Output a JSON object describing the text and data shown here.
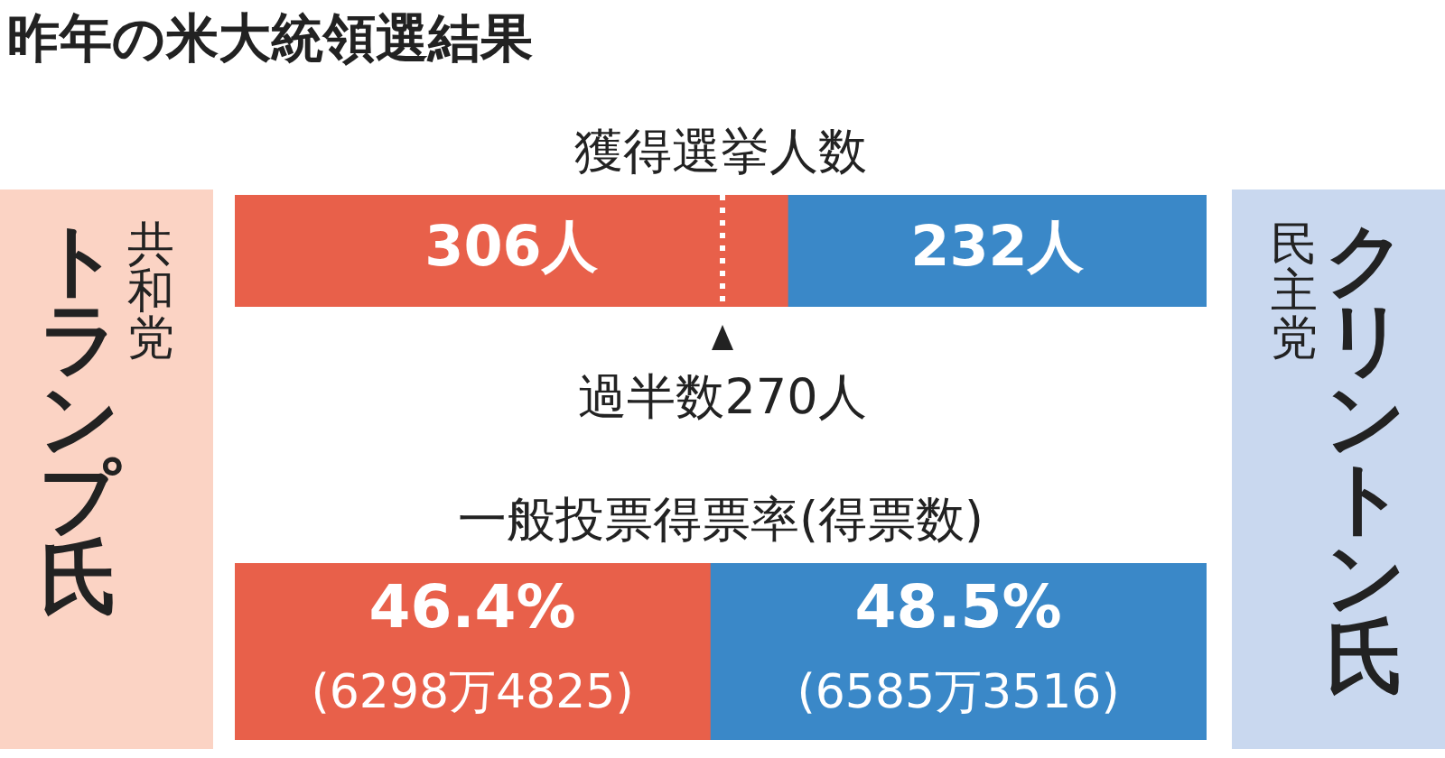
{
  "chart_data": [
    {
      "type": "bar",
      "orientation": "horizontal",
      "stacked": true,
      "title": "昨年の米大統領選結果",
      "subtitle": "獲得選挙人数",
      "categories": [
        null
      ],
      "series": [
        {
          "name": "トランプ氏",
          "color": "#e8604a",
          "values": [
            306
          ],
          "value_labels": [
            "306人"
          ]
        },
        {
          "name": "クリントン氏",
          "color": "#3a88c8",
          "values": [
            232
          ],
          "value_labels": [
            "232人"
          ]
        }
      ],
      "annotations": [
        "共和党",
        "民主党"
      ],
      "ref_lines": [
        {
          "axis": "x",
          "value": 270,
          "label": "過半数270人",
          "color": "#ffffff",
          "line_style": "dotted"
        }
      ],
      "tick_labels": false,
      "legend": false
    },
    {
      "type": "bar",
      "orientation": "horizontal",
      "stacked": true,
      "title": "一般投票得票率(得票数)",
      "categories": [
        null
      ],
      "series": [
        {
          "color": "#e8604a",
          "values": [
            46.4
          ],
          "value_labels": [
            "46.4%\n(6298万4825)"
          ]
        },
        {
          "color": "#3a88c8",
          "values": [
            48.5
          ],
          "value_labels": [
            "48.5%\n(6585万3516)"
          ]
        }
      ],
      "tick_labels": false,
      "legend": false
    }
  ]
}
